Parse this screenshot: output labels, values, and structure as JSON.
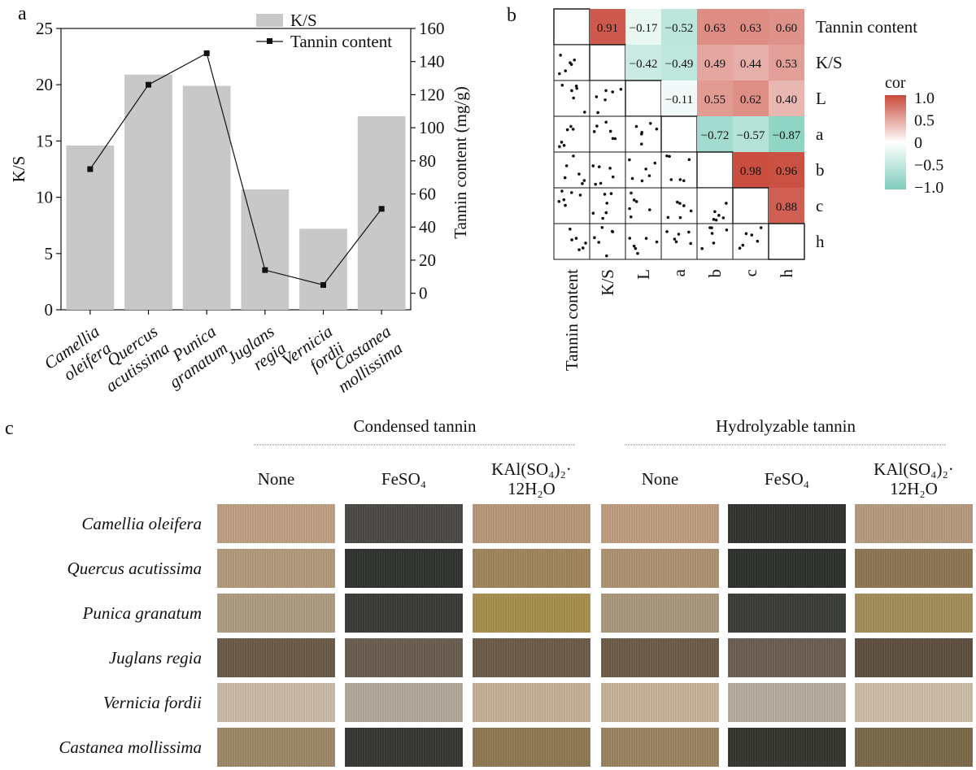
{
  "panel_labels": {
    "a": "a",
    "b": "b",
    "c": "c"
  },
  "chart_data": [
    {
      "type": "bar",
      "panel": "a",
      "categories": [
        [
          "Camellia",
          "oleifera"
        ],
        [
          "Quercus",
          "acutissima"
        ],
        [
          "Punica",
          "granatum"
        ],
        [
          "Juglans",
          "regia"
        ],
        [
          "Vernicia",
          "fordii"
        ],
        [
          "Castanea",
          "mollissima"
        ]
      ],
      "series": [
        {
          "name": "K/S",
          "kind": "bar",
          "axis": "left",
          "values": [
            14.6,
            20.9,
            19.9,
            10.7,
            7.2,
            17.2
          ],
          "color": "#c8c8c8"
        },
        {
          "name": "Tannin content",
          "kind": "line",
          "axis": "right",
          "values": [
            75,
            126,
            145,
            14,
            5,
            51
          ],
          "color": "#111111"
        }
      ],
      "ylabel": "K/S",
      "ylim": [
        0,
        25
      ],
      "yticks": [
        0,
        5,
        10,
        15,
        20,
        25
      ],
      "y2label": "Tannin content (mg/g)",
      "y2lim": [
        -10,
        160
      ],
      "y2ticks": [
        0,
        20,
        40,
        60,
        80,
        100,
        120,
        140,
        160
      ],
      "legend": {
        "position": "top-right",
        "entries": [
          "K/S",
          "Tannin content"
        ]
      }
    },
    {
      "type": "heatmap",
      "panel": "b",
      "variables": [
        "Tannin content",
        "K/S",
        "L",
        "a",
        "b",
        "c",
        "h"
      ],
      "correlations": [
        [
          1,
          0.91,
          -0.17,
          -0.52,
          0.63,
          0.63,
          0.6
        ],
        [
          0.91,
          1,
          -0.42,
          -0.49,
          0.49,
          0.44,
          0.53
        ],
        [
          -0.17,
          -0.42,
          1,
          -0.11,
          0.55,
          0.62,
          0.4
        ],
        [
          -0.52,
          -0.49,
          -0.11,
          1,
          -0.72,
          -0.57,
          -0.87
        ],
        [
          0.63,
          0.49,
          0.55,
          -0.72,
          1,
          0.98,
          0.96
        ],
        [
          0.63,
          0.44,
          0.62,
          -0.57,
          0.98,
          1,
          0.88
        ],
        [
          0.6,
          0.53,
          0.4,
          -0.87,
          0.96,
          0.88,
          1
        ]
      ],
      "lower_triangle": "scatter",
      "colorbar": {
        "title": "cor",
        "ticks": [
          "1.0",
          "0.5",
          "0",
          "−0.5",
          "−1.0"
        ],
        "low_color": "#7fcdbb",
        "mid_color": "#ffffff",
        "high_color": "#c94a3b"
      }
    }
  ],
  "swatch_panel": {
    "groups": [
      "Condensed tannin",
      "Hydrolyzable tannin"
    ],
    "columns": [
      "None",
      "FeSO₄",
      "KAl(SO₄)₂·12H₂O",
      "None",
      "FeSO₄",
      "KAl(SO₄)₂·12H₂O"
    ],
    "rows": [
      {
        "label": "Camellia oleifera",
        "colors": [
          "#bfa084",
          "#4b4a46",
          "#b9997b",
          "#c09e80",
          "#333431",
          "#b79a7f"
        ]
      },
      {
        "label": "Quercus acutissima",
        "colors": [
          "#b39a7d",
          "#2f322e",
          "#9f865c",
          "#ad9473",
          "#2d302c",
          "#8f7755"
        ]
      },
      {
        "label": "Punica granatum",
        "colors": [
          "#ad9d83",
          "#3a3c38",
          "#a8904e",
          "#aa997c",
          "#3b3d39",
          "#a48f5b"
        ]
      },
      {
        "label": "Juglans regia",
        "colors": [
          "#6b5a48",
          "#6a5e52",
          "#6d5c48",
          "#6f5c49",
          "#6b5f54",
          "#5f5040"
        ]
      },
      {
        "label": "Vernicia fordii",
        "colors": [
          "#cbbba9",
          "#b4aa9d",
          "#c6b297",
          "#c8b49b",
          "#b6ad9f",
          "#cdbea6"
        ]
      },
      {
        "label": "Castanea mollissima",
        "colors": [
          "#9c8968",
          "#373834",
          "#8f7a55",
          "#9a8462",
          "#36362f",
          "#7b6a4a"
        ]
      }
    ]
  }
}
